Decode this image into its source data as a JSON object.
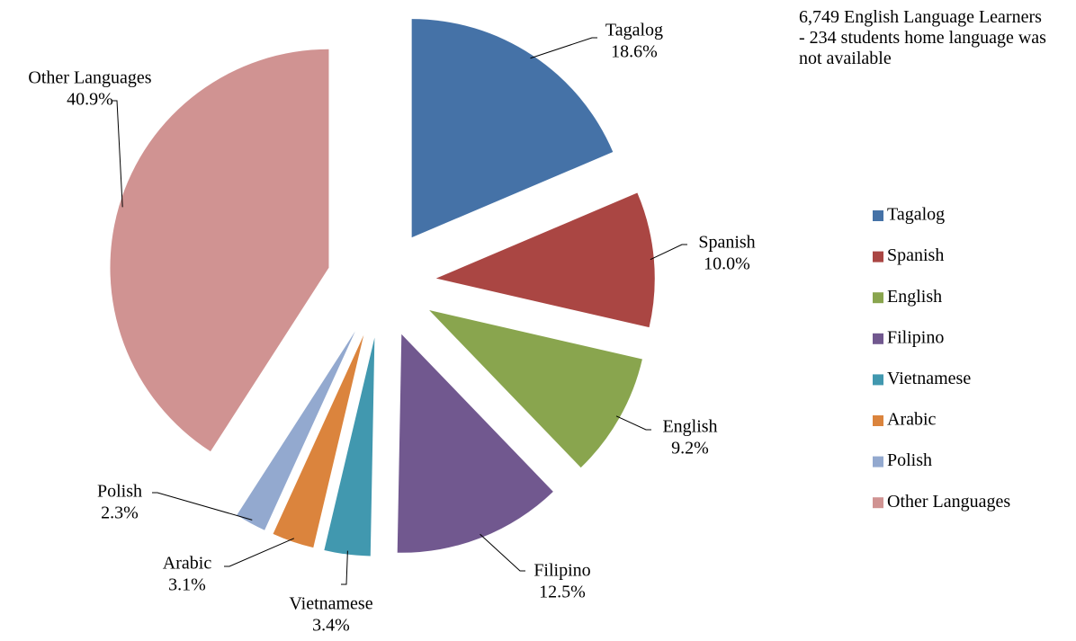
{
  "chart_data": {
    "type": "pie",
    "annotations": [
      "6,749 English Language Learners",
      "- 234 students home language was not available"
    ],
    "categories": [
      "Tagalog",
      "Spanish",
      "English",
      "Filipino",
      "Vietnamese",
      "Arabic",
      "Polish",
      "Other Languages"
    ],
    "values": [
      18.6,
      10.0,
      9.2,
      12.5,
      3.4,
      3.1,
      2.3,
      40.9
    ],
    "value_labels": [
      "18.6%",
      "10.0%",
      "9.2%",
      "12.5%",
      "3.4%",
      "3.1%",
      "2.3%",
      "40.9%"
    ],
    "colors": [
      "#4572a7",
      "#aa4643",
      "#89a54e",
      "#71588f",
      "#4198af",
      "#db843d",
      "#93a9cf",
      "#d09392"
    ],
    "legend": "right"
  }
}
